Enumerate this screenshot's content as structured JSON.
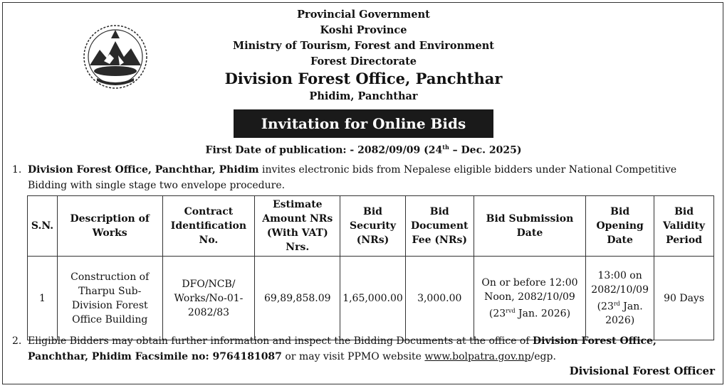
{
  "header": {
    "line1": "Provincial Government",
    "line2": "Koshi Province",
    "line3": "Ministry of Tourism, Forest and Environment",
    "line4": "Forest Directorate",
    "office": "Division Forest Office, Panchthar",
    "location": "Phidim, Panchthar"
  },
  "banner": "Invitation for Online Bids",
  "publication": {
    "prefix": "First Date of  publication: - 2082/09/09 (24",
    "sup": "th",
    "suffix": " – Dec. 2025)"
  },
  "para1": {
    "num": "1.",
    "bold": "Division Forest Office, Panchthar, Phidim",
    "text": " invites electronic bids from Nepalese eligible bidders under National Competitive Bidding with single stage two envelope procedure."
  },
  "table": {
    "headers": {
      "sn": "S.N.",
      "desc": "Description of Works",
      "contract": "Contract Identification No.",
      "estimate": "Estimate Amount NRs (With VAT) Nrs.",
      "security": "Bid Security (NRs)",
      "fee": "Bid Document Fee (NRs)",
      "submission": "Bid Submission Date",
      "opening": "Bid Opening Date",
      "validity": "Bid Validity Period"
    },
    "row": {
      "sn": "1",
      "desc": "Construction of Tharpu Sub-Division Forest Office Building",
      "contract": "DFO/NCB/ Works/No-01-2082/83",
      "estimate": "69,89,858.09",
      "security": "1,65,000.00",
      "fee": "3,000.00",
      "submission_main": "On or before 12:00 Noon, 2082/10/09 (23",
      "submission_sup": "rvd",
      "submission_end": " Jan. 2026)",
      "opening_main": "13:00 on 2082/10/09 (23",
      "opening_sup": "rd",
      "opening_end": " Jan. 2026)",
      "validity": "90 Days"
    }
  },
  "para2": {
    "num": "2.",
    "text1": "Eligible Bidders may obtain further information and inspect the Bidding Documents at the office of ",
    "bold": "Division Forest Office, Panchthar, Phidim Facsimile no: 9764181087",
    "text2": " or may visit PPMO website ",
    "link": "www.bolpatra.gov.np",
    "text3": "/egp."
  },
  "signature": "Divisional Forest Officer",
  "emblem": {
    "icon": "nepal-emblem-icon",
    "color": "#2a2a2a"
  }
}
